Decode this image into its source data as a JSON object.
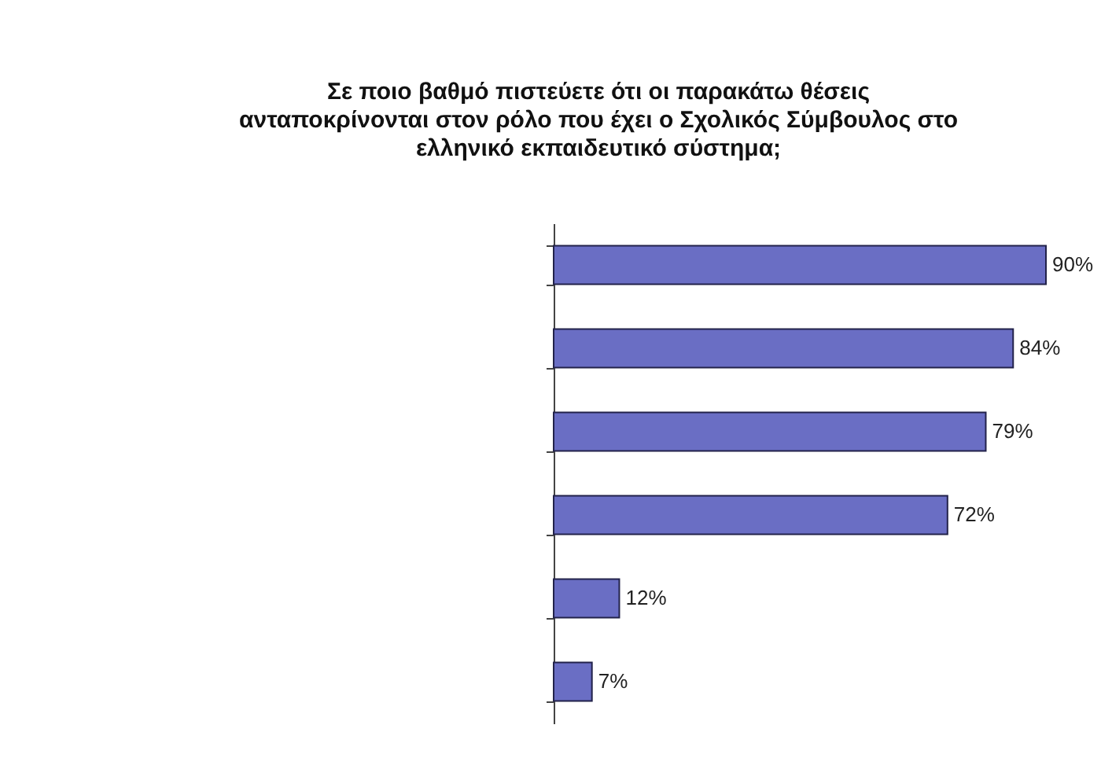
{
  "chart_data": {
    "type": "bar",
    "orientation": "horizontal",
    "title": "Σε ποιο βαθμό πιστεύετε ότι οι παρακάτω θέσεις\nανταποκρίνονται στον ρόλο που έχει ο Σχολικός Σύμβουλος  στο\nελληνικό εκπαιδευτικό σύστημα;",
    "categories": [
      null,
      null,
      null,
      null,
      null,
      null
    ],
    "values": [
      90,
      84,
      79,
      72,
      12,
      7
    ],
    "value_labels": [
      "90%",
      "84%",
      "79%",
      "72%",
      "12%",
      "7%"
    ],
    "color": "#6a6ec4"
  }
}
